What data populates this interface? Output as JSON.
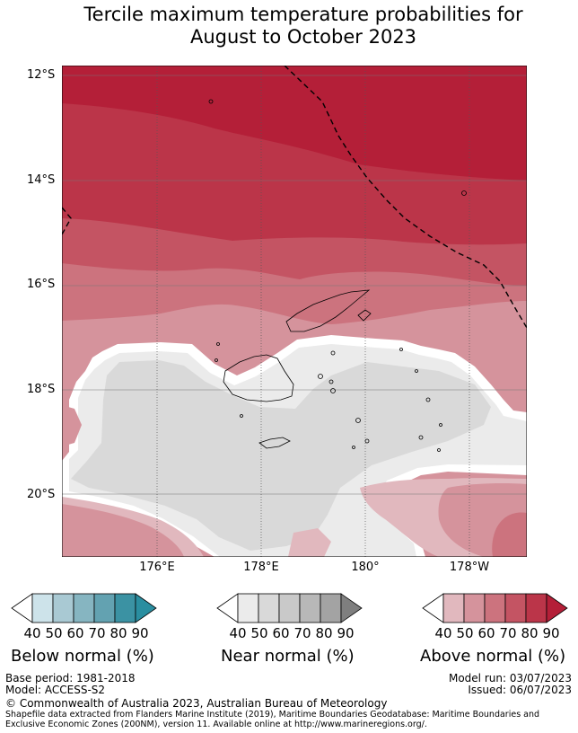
{
  "title": {
    "line1": "Tercile maximum temperature probabilities for",
    "line2": "August to October 2023"
  },
  "map": {
    "lat_labels": [
      "12°S",
      "14°S",
      "16°S",
      "18°S",
      "20°S"
    ],
    "lon_labels": [
      "176°E",
      "178°E",
      "180°",
      "178°W"
    ]
  },
  "legends": [
    {
      "name": "Below normal (%)",
      "ticks": [
        "40",
        "50",
        "60",
        "70",
        "80",
        "90"
      ],
      "colors": [
        "#ffffff",
        "#cde3ea",
        "#a9c9d3",
        "#86b5c1",
        "#63a2b1",
        "#3b92a3",
        "#2a8ea0"
      ]
    },
    {
      "name": "Near normal (%)",
      "ticks": [
        "40",
        "50",
        "60",
        "70",
        "80",
        "90"
      ],
      "colors": [
        "#ffffff",
        "#ebebeb",
        "#d9d9d9",
        "#c9c9c9",
        "#b8b8b8",
        "#a3a3a3",
        "#7f7f7f"
      ]
    },
    {
      "name": "Above normal (%)",
      "ticks": [
        "40",
        "50",
        "60",
        "70",
        "80",
        "90"
      ],
      "colors": [
        "#ffffff",
        "#e1b8be",
        "#d5939c",
        "#cc737e",
        "#c45463",
        "#bb3549",
        "#b41f38"
      ]
    }
  ],
  "footer": {
    "base_period": "Base period: 1981-2018",
    "model": "Model: ACCESS-S2",
    "model_run": "Model run: 03/07/2023",
    "issued": "Issued: 06/07/2023",
    "copyright": "© Commonwealth of Australia 2023, Australian Bureau of Meteorology",
    "shapefile_note": "Shapefile data extracted from Flanders Marine Institute (2019), Maritime Boundaries Geodatabase: Maritime Boundaries and Exclusive Economic Zones (200NM), version 11. Available online at http://www.marineregions.org/."
  }
}
